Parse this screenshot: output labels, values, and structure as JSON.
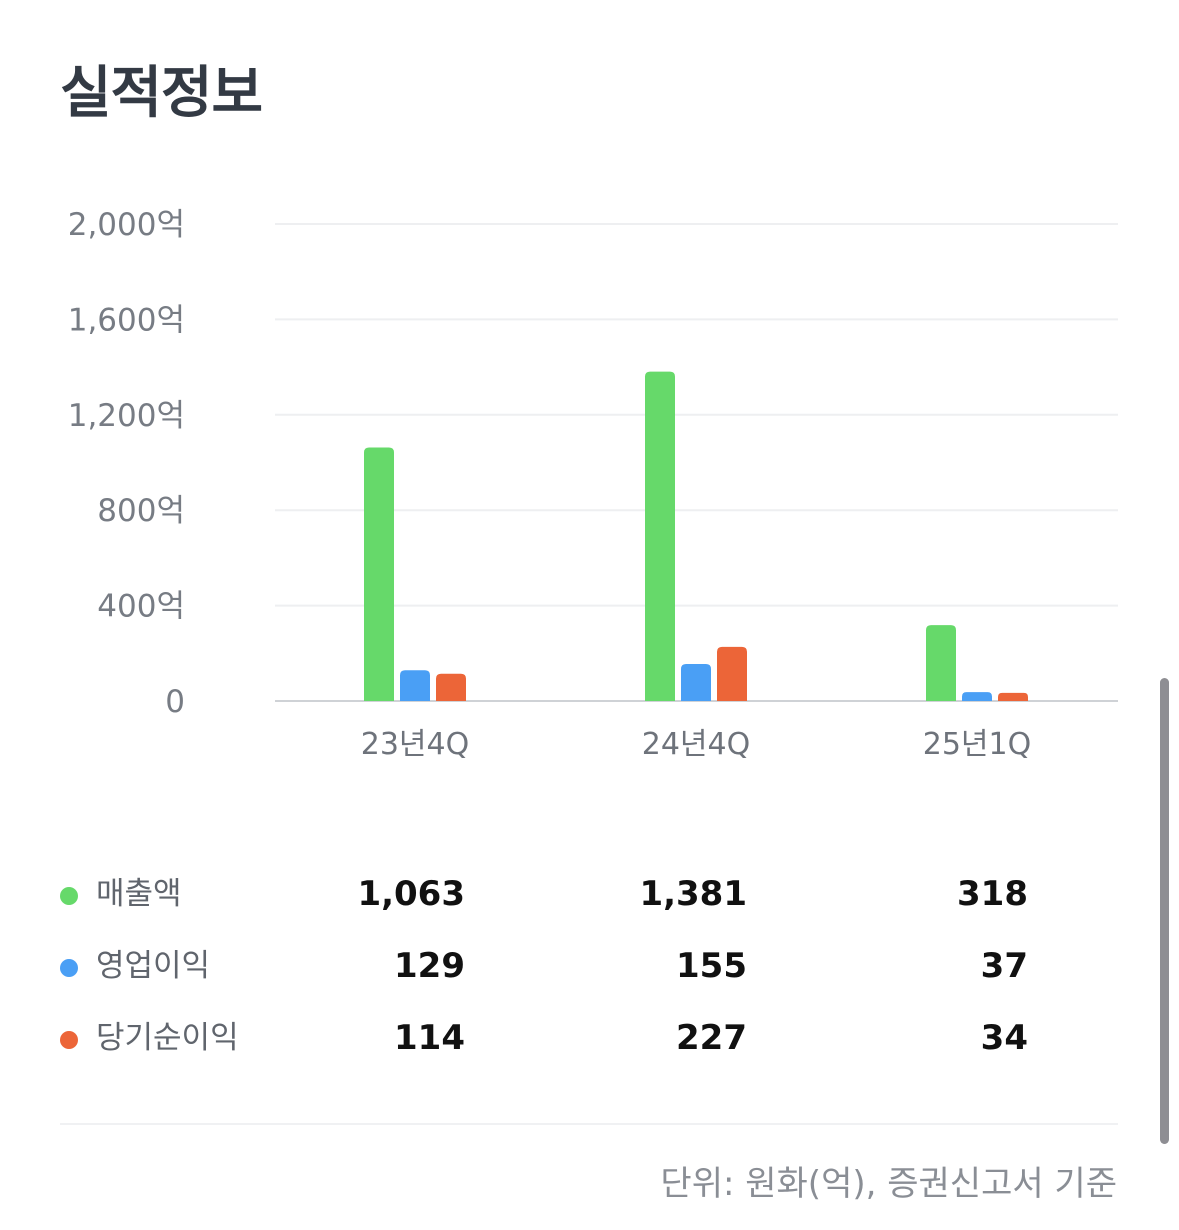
{
  "title": "실적정보",
  "chart_data": {
    "type": "bar",
    "categories": [
      "23년4Q",
      "24년4Q",
      "25년1Q"
    ],
    "series": [
      {
        "name": "매출액",
        "color": "#66d96a",
        "values": [
          1063,
          1381,
          318
        ]
      },
      {
        "name": "영업이익",
        "color": "#4a9ff5",
        "values": [
          129,
          155,
          37
        ]
      },
      {
        "name": "당기순이익",
        "color": "#ec6538",
        "values": [
          114,
          227,
          34
        ]
      }
    ],
    "yticks": [
      "0",
      "400억",
      "800억",
      "1,200억",
      "1,600억",
      "2,000억"
    ],
    "ylim": [
      0,
      2000
    ],
    "grid": true
  },
  "table": {
    "rows": [
      {
        "label": "매출액",
        "color": "#66d96a",
        "values": [
          "1,063",
          "1,381",
          "318"
        ]
      },
      {
        "label": "영업이익",
        "color": "#4a9ff5",
        "values": [
          "129",
          "155",
          "37"
        ]
      },
      {
        "label": "당기순이익",
        "color": "#ec6538",
        "values": [
          "114",
          "227",
          "34"
        ]
      }
    ]
  },
  "footnote": "단위: 원화(억), 증권신고서 기준"
}
